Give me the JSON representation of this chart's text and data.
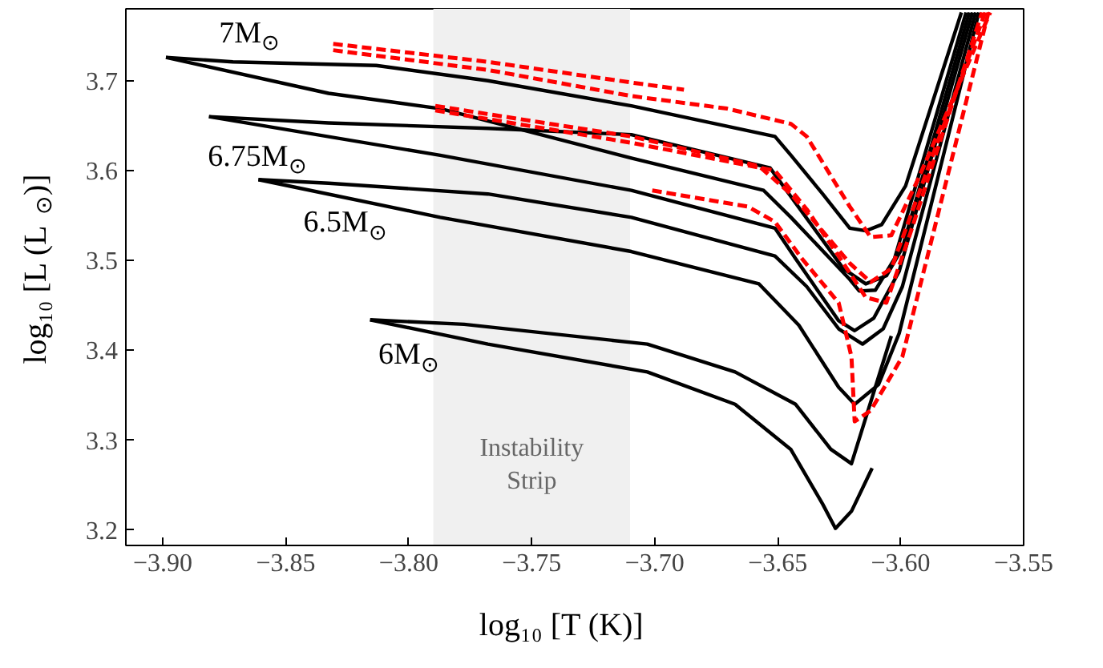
{
  "chart_data": {
    "type": "line",
    "xlabel": "log₁₀ [T (K)]",
    "ylabel": "log₁₀ [L (L$_{⊙}$)]",
    "xlim": [
      -3.915,
      -3.55
    ],
    "ylim": [
      3.183,
      3.78
    ],
    "xticks": [
      {
        "value": -3.9,
        "label": "−3.90"
      },
      {
        "value": -3.85,
        "label": "−3.85"
      },
      {
        "value": -3.8,
        "label": "−3.80"
      },
      {
        "value": -3.75,
        "label": "−3.75"
      },
      {
        "value": -3.7,
        "label": "−3.70"
      },
      {
        "value": -3.65,
        "label": "−3.65"
      },
      {
        "value": -3.6,
        "label": "−3.60"
      },
      {
        "value": -3.55,
        "label": "−3.55"
      }
    ],
    "yticks": [
      3.2,
      3.3,
      3.4,
      3.5,
      3.6,
      3.7
    ],
    "bands": [
      {
        "axis": "x",
        "from": -3.79,
        "to": -3.71,
        "label": "Instability\nStrip",
        "color": "#f0f0f0"
      }
    ],
    "annotations": [
      "7M$_{⊙}$",
      "6.75M$_{⊙}$",
      "6.5M$_{⊙}$",
      "6M$_{⊙}$"
    ],
    "series": [
      {
        "color": "#000000",
        "line_style": "solid",
        "x": [
          -3.8987,
          -3.8715,
          -3.8132,
          -3.7678,
          -3.7095,
          -3.6511,
          -3.6446,
          -3.6317,
          -3.6207,
          -3.6142,
          -3.6077,
          -3.598,
          -3.5753
        ],
        "values": [
          3.726,
          3.721,
          3.717,
          3.7,
          3.672,
          3.638,
          3.617,
          3.574,
          3.536,
          3.533,
          3.54,
          3.583,
          3.776
        ]
      },
      {
        "color": "#000000",
        "line_style": "solid",
        "x": [
          -3.8987,
          -3.8326,
          -3.7872,
          -3.7095,
          -3.6557,
          -3.6446,
          -3.6207,
          -3.6168,
          -3.6103,
          -3.6025,
          -3.5734
        ],
        "values": [
          3.726,
          3.686,
          3.669,
          3.614,
          3.578,
          3.548,
          3.479,
          3.466,
          3.467,
          3.502,
          3.776
        ]
      },
      {
        "color": "#000000",
        "line_style": "solid",
        "x": [
          -3.8812,
          -3.8326,
          -3.7678,
          -3.7095,
          -3.6531,
          -3.6446,
          -3.6233,
          -3.6142,
          -3.6058,
          -3.5993,
          -3.5721
        ],
        "values": [
          3.66,
          3.653,
          3.647,
          3.64,
          3.603,
          3.571,
          3.491,
          3.474,
          3.483,
          3.514,
          3.776
        ]
      },
      {
        "color": "#000000",
        "line_style": "solid",
        "x": [
          -3.8812,
          -3.7872,
          -3.7095,
          -3.6511,
          -3.6427,
          -3.6252,
          -3.6187,
          -3.6109,
          -3.6006,
          -3.5708
        ],
        "values": [
          3.66,
          3.617,
          3.578,
          3.536,
          3.502,
          3.433,
          3.422,
          3.436,
          3.488,
          3.776
        ]
      },
      {
        "color": "#000000",
        "line_style": "solid",
        "x": [
          -3.8611,
          -3.8326,
          -3.7678,
          -3.7095,
          -3.6511,
          -3.6382,
          -3.6252,
          -3.6155,
          -3.6071,
          -3.5993,
          -3.5695
        ],
        "values": [
          3.59,
          3.586,
          3.574,
          3.548,
          3.505,
          3.471,
          3.424,
          3.407,
          3.424,
          3.471,
          3.776
        ]
      },
      {
        "color": "#000000",
        "line_style": "solid",
        "x": [
          -3.8611,
          -3.7872,
          -3.7095,
          -3.6576,
          -3.6414,
          -3.6252,
          -3.6187,
          -3.609,
          -3.6006,
          -3.5682
        ],
        "values": [
          3.59,
          3.548,
          3.51,
          3.474,
          3.428,
          3.359,
          3.34,
          3.362,
          3.419,
          3.776
        ]
      },
      {
        "color": "#000000",
        "line_style": "solid",
        "x": [
          -3.8157,
          -3.7775,
          -3.703,
          -3.6673,
          -3.6427,
          -3.6284,
          -3.62,
          -3.6038
        ],
        "values": [
          3.434,
          3.429,
          3.407,
          3.376,
          3.34,
          3.29,
          3.274,
          3.416
        ]
      },
      {
        "color": "#000000",
        "line_style": "solid",
        "x": [
          -3.8157,
          -3.7678,
          -3.703,
          -3.6673,
          -3.6447,
          -3.6317,
          -3.6265,
          -3.62,
          -3.6116
        ],
        "values": [
          3.434,
          3.407,
          3.376,
          3.34,
          3.29,
          3.229,
          3.202,
          3.221,
          3.269
        ]
      },
      {
        "color": "#ff0000",
        "line_style": "dashed",
        "x": [
          -3.8307,
          -3.7678,
          -3.7095,
          -3.6881
        ],
        "values": [
          3.741,
          3.721,
          3.698,
          3.69
        ]
      },
      {
        "color": "#ff0000",
        "line_style": "dashed",
        "x": [
          -3.8307,
          -3.7678,
          -3.7095,
          -3.6706,
          -3.6446,
          -3.6382,
          -3.6207,
          -3.6122,
          -3.6038,
          -3.5928,
          -3.5636
        ],
        "values": [
          3.734,
          3.712,
          3.683,
          3.669,
          3.652,
          3.638,
          3.56,
          3.526,
          3.528,
          3.591,
          3.776
        ]
      },
      {
        "color": "#ff0000",
        "line_style": "dashed",
        "x": [
          -3.7892,
          -3.7095,
          -3.6576,
          -3.6446,
          -3.6207,
          -3.6122,
          -3.6038,
          -3.5915,
          -3.5656
        ],
        "values": [
          3.672,
          3.638,
          3.605,
          3.574,
          3.497,
          3.476,
          3.491,
          3.583,
          3.776
        ]
      },
      {
        "color": "#ff0000",
        "line_style": "dashed",
        "x": [
          -3.7892,
          -3.7095,
          -3.6511,
          -3.6382,
          -3.6252,
          -3.6142,
          -3.6058,
          -3.596,
          -3.5669
        ],
        "values": [
          3.667,
          3.631,
          3.6,
          3.557,
          3.505,
          3.459,
          3.453,
          3.531,
          3.776
        ]
      },
      {
        "color": "#ff0000",
        "line_style": "dashed",
        "x": [
          -3.701,
          -3.6621,
          -3.6511,
          -3.6401,
          -3.6252,
          -3.62,
          -3.6187,
          -3.6122,
          -3.5993,
          -3.5643
        ],
        "values": [
          3.578,
          3.56,
          3.543,
          3.502,
          3.453,
          3.393,
          3.321,
          3.333,
          3.393,
          3.776
        ]
      }
    ]
  }
}
